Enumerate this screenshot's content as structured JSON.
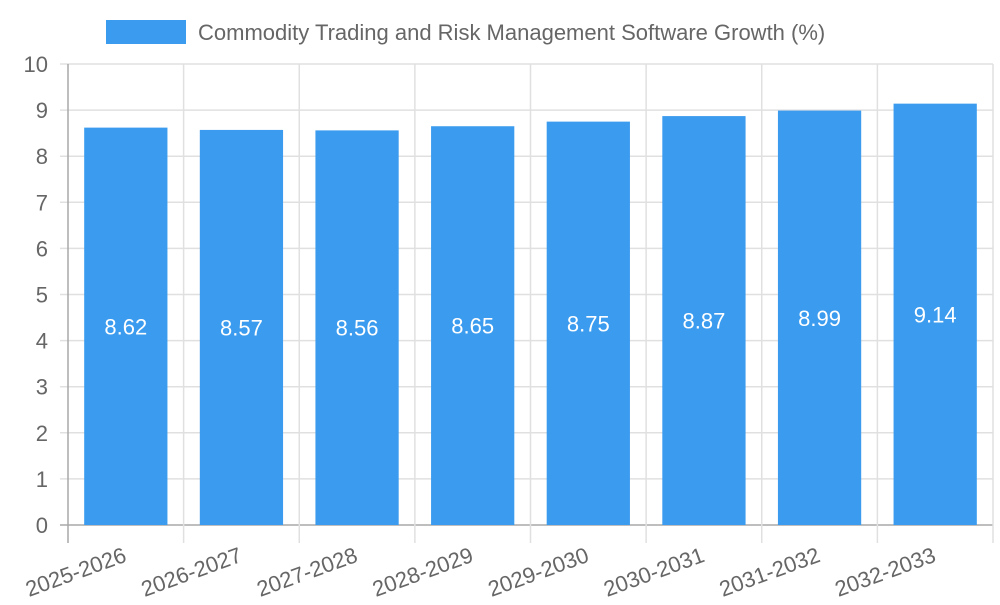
{
  "chart_data": {
    "type": "bar",
    "title": "",
    "legend": [
      {
        "label": "Commodity Trading and Risk Management Software Growth (%)",
        "color": "#3a9bef"
      }
    ],
    "legend_position": "top",
    "categories": [
      "2025-2026",
      "2026-2027",
      "2027-2028",
      "2028-2029",
      "2029-2030",
      "2030-2031",
      "2031-2032",
      "2032-2033"
    ],
    "series": [
      {
        "name": "Commodity Trading and Risk Management Software Growth (%)",
        "values": [
          8.62,
          8.57,
          8.56,
          8.65,
          8.75,
          8.87,
          8.99,
          9.14
        ],
        "color": "#3a9bef"
      }
    ],
    "data_labels": [
      "8.62",
      "8.57",
      "8.56",
      "8.65",
      "8.75",
      "8.87",
      "8.99",
      "9.14"
    ],
    "xlabel": "",
    "ylabel": "",
    "ylim": [
      0,
      10
    ],
    "yticks": [
      "0",
      "1",
      "2",
      "3",
      "4",
      "5",
      "6",
      "7",
      "8",
      "9",
      "10"
    ],
    "grid": true,
    "x_tick_rotation": -20
  },
  "colors": {
    "bar": "#3a9bef",
    "grid": "#e0e0e0",
    "axis": "#a8a8a8",
    "tick_text": "#666666",
    "data_label": "#ffffff"
  }
}
